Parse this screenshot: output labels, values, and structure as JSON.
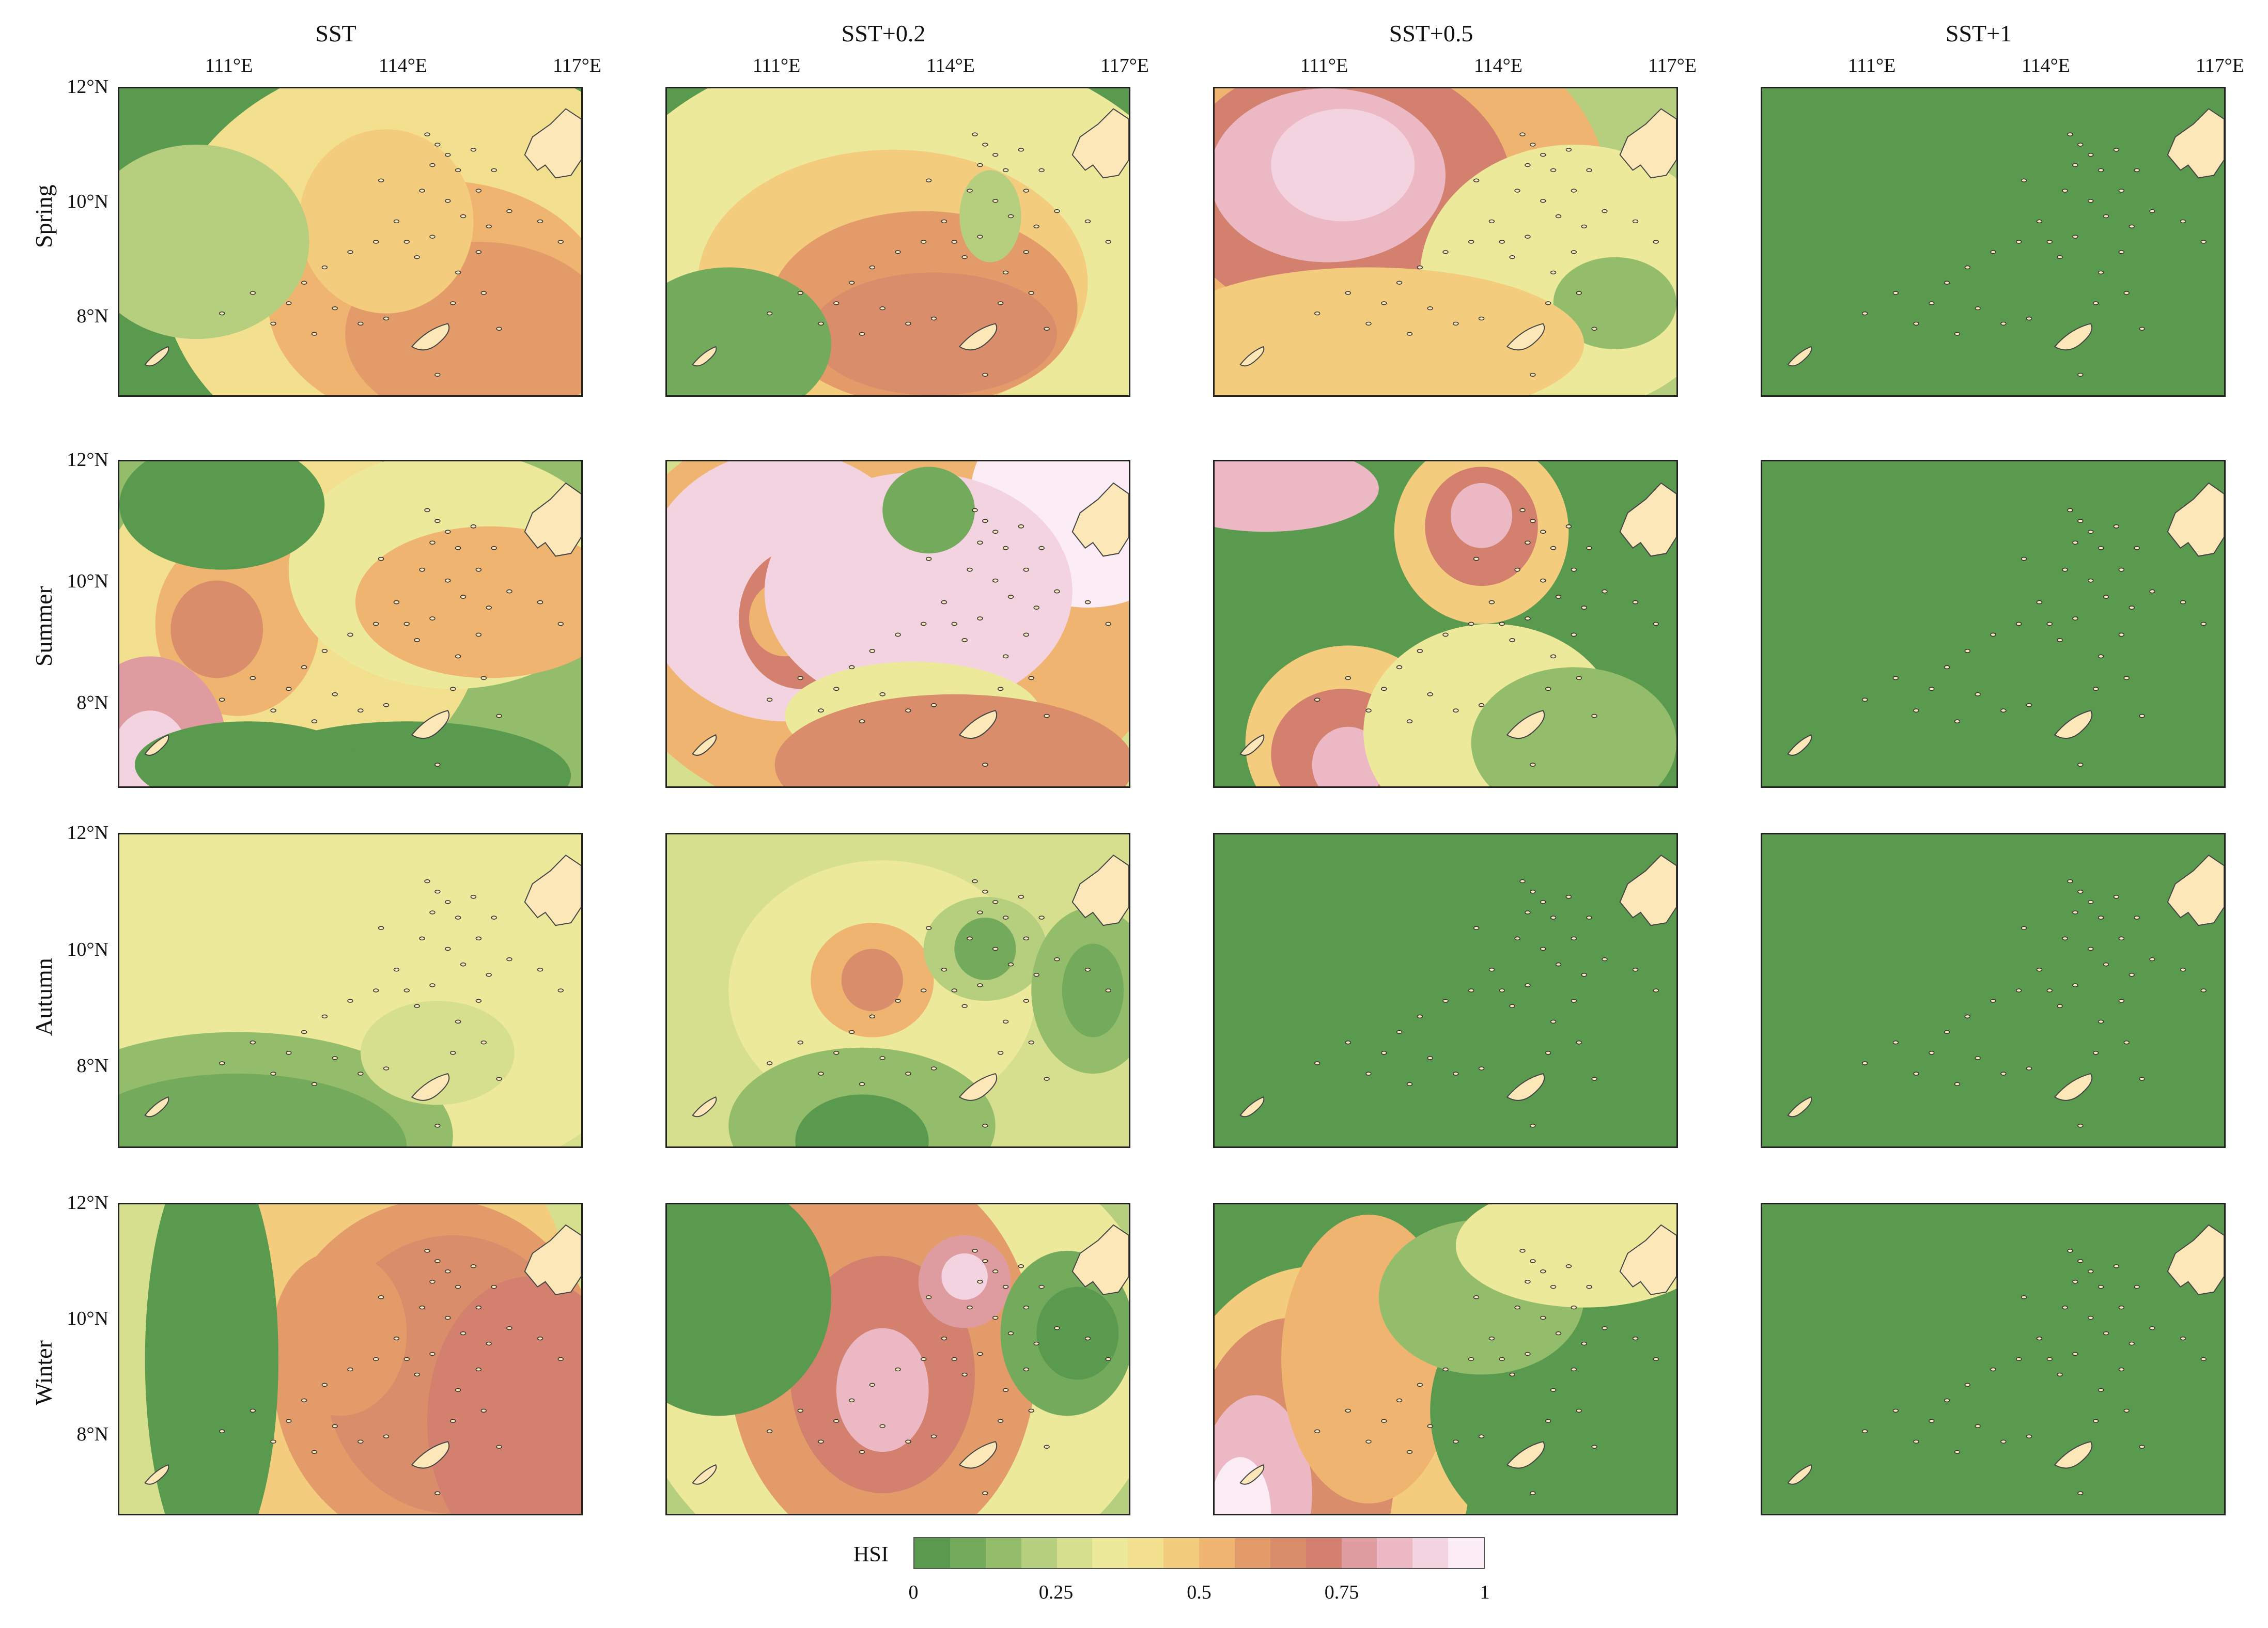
{
  "columns": [
    "SST",
    "SST+0.2",
    "SST+0.5",
    "SST+1"
  ],
  "rows": [
    "Spring",
    "Summer",
    "Autumn",
    "Winter"
  ],
  "lon_ticks": [
    "111°E",
    "114°E",
    "117°E"
  ],
  "lat_ticks": [
    "12°N",
    "10°N",
    "8°N"
  ],
  "colorbar": {
    "label": "HSI",
    "ticks": [
      "0",
      "0.25",
      "0.5",
      "0.75",
      "1"
    ],
    "colors": [
      "#5a9a4f",
      "#73aa5c",
      "#93bd6b",
      "#b6cf7f",
      "#d6df8e",
      "#ede99b",
      "#f3e08f",
      "#f4cc7d",
      "#efb470",
      "#e39c69",
      "#d98d6b",
      "#d3806f",
      "#de9ca0",
      "#ebb8c4",
      "#f4d3e0",
      "#fbecf5"
    ]
  },
  "colors": {
    "land": "#fbe7b8",
    "ocean_low": "#5a9a4f"
  }
}
